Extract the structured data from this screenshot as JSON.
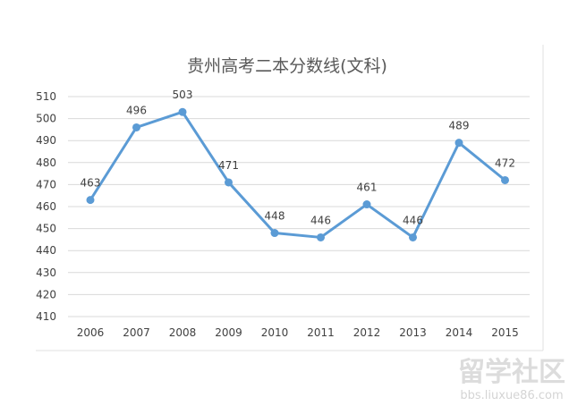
{
  "chart_data": {
    "type": "line",
    "title": "贵州高考二本分数线(文科)",
    "xlabel": "",
    "ylabel": "",
    "categories": [
      "2006",
      "2007",
      "2008",
      "2009",
      "2010",
      "2011",
      "2012",
      "2013",
      "2014",
      "2015"
    ],
    "series": [
      {
        "values": [
          463,
          496,
          503,
          471,
          448,
          446,
          461,
          446,
          489,
          472
        ],
        "color": "#5b9bd5",
        "data_labels": true
      }
    ],
    "ylim": [
      410,
      510
    ],
    "yticks": [
      410,
      420,
      430,
      440,
      450,
      460,
      470,
      480,
      490,
      500,
      510
    ],
    "grid": true,
    "legend": "none"
  },
  "colors": {
    "gridline": "#d9d9d9",
    "axis_text": "#404040",
    "title_text": "#595959",
    "line": "#5b9bd5"
  },
  "watermark": {
    "logo_text": "留学社区",
    "url_text": "bbs.liuxue86.com"
  }
}
